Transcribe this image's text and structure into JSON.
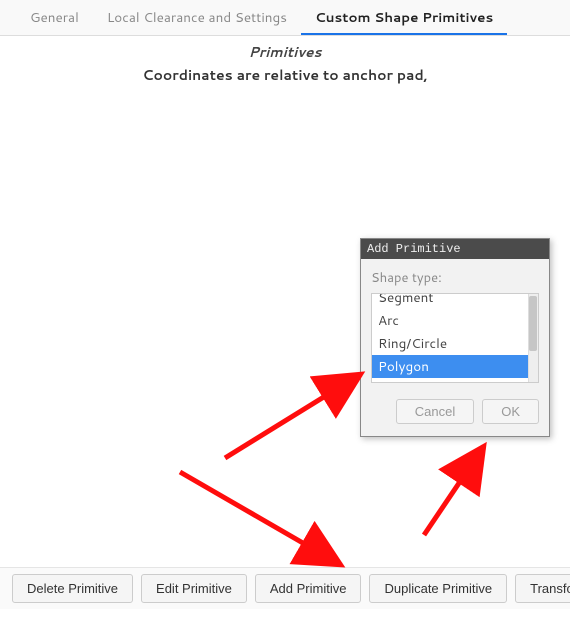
{
  "tabs": {
    "items": [
      {
        "label": "General",
        "active": false
      },
      {
        "label": "Local Clearance and Settings",
        "active": false
      },
      {
        "label": "Custom Shape Primitives",
        "active": true
      }
    ]
  },
  "header": {
    "subtitle": "Primitives",
    "note": "Coordinates are relative to anchor pad,"
  },
  "buttons": {
    "delete": "Delete Primitive",
    "edit": "Edit Primitive",
    "add": "Add Primitive",
    "duplicate": "Duplicate Primitive",
    "transform": "Transform"
  },
  "dialog": {
    "title": "Add Primitive",
    "shape_label": "Shape type:",
    "options": [
      {
        "label": "Segment",
        "selected": false,
        "clipped": true
      },
      {
        "label": "Arc",
        "selected": false,
        "clipped": false
      },
      {
        "label": "Ring/Circle",
        "selected": false,
        "clipped": false
      },
      {
        "label": "Polygon",
        "selected": true,
        "clipped": false
      }
    ],
    "cancel": "Cancel",
    "ok": "OK"
  },
  "colors": {
    "accent": "#1a73e8",
    "arrow": "#ff0d0d",
    "selection": "#3d8ef0",
    "dialog_title_bg": "#4b4b4b"
  }
}
